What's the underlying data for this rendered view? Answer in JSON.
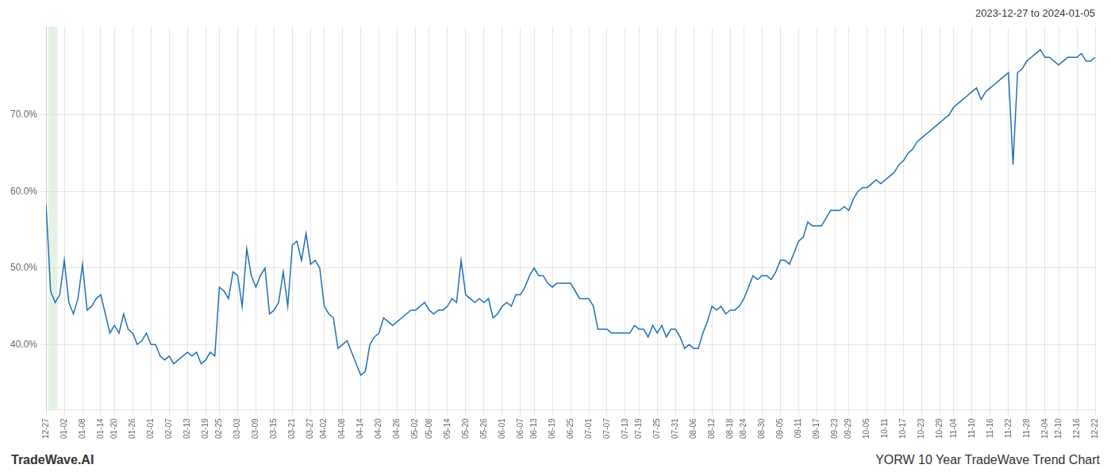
{
  "chart_data": {
    "type": "line",
    "subtitle": "2023-12-27 to 2024-01-05",
    "annotations": [
      "TradeWave.AI",
      "YORW 10 Year TradeWave Trend Chart"
    ],
    "color": "#1f6fb5",
    "grid": true,
    "highlight": {
      "x": [
        0.5,
        2.5
      ],
      "color": "#c8e6c9"
    },
    "ylim": [
      0.315,
      0.815
    ],
    "yticks": [
      {
        "value": 0.4,
        "label": "40.0%"
      },
      {
        "value": 0.5,
        "label": "50.0%"
      },
      {
        "value": 0.6,
        "label": "60.0%"
      },
      {
        "value": 0.7,
        "label": "70.0%"
      }
    ],
    "categories": [
      "12-27",
      null,
      null,
      null,
      "01-02",
      null,
      null,
      null,
      "01-08",
      null,
      null,
      null,
      "01-14",
      null,
      null,
      "01-20",
      null,
      null,
      null,
      "01-26",
      null,
      null,
      null,
      "02-01",
      null,
      null,
      null,
      "02-07",
      null,
      null,
      null,
      "02-13",
      null,
      null,
      null,
      "02-19",
      null,
      null,
      "02-25",
      null,
      null,
      null,
      "03-03",
      null,
      null,
      null,
      "03-09",
      null,
      null,
      null,
      "03-15",
      null,
      null,
      null,
      "03-21",
      null,
      null,
      null,
      "03-27",
      null,
      null,
      "04-02",
      null,
      null,
      null,
      "04-08",
      null,
      null,
      null,
      "04-14",
      null,
      null,
      null,
      "04-20",
      null,
      null,
      null,
      "04-26",
      null,
      null,
      null,
      "05-02",
      null,
      null,
      "05-08",
      null,
      null,
      null,
      "05-14",
      null,
      null,
      null,
      "05-20",
      null,
      null,
      null,
      "05-26",
      null,
      null,
      null,
      "06-01",
      null,
      null,
      null,
      "06-07",
      null,
      null,
      "06-13",
      null,
      null,
      null,
      "06-19",
      null,
      null,
      null,
      "06-25",
      null,
      null,
      null,
      "07-01",
      null,
      null,
      null,
      "07-07",
      null,
      null,
      null,
      "07-13",
      null,
      null,
      "07-19",
      null,
      null,
      null,
      "07-25",
      null,
      null,
      null,
      "07-31",
      null,
      null,
      null,
      "08-06",
      null,
      null,
      null,
      "08-12",
      null,
      null,
      null,
      "08-18",
      null,
      null,
      "08-24",
      null,
      null,
      null,
      "08-30",
      null,
      null,
      null,
      "09-05",
      null,
      null,
      null,
      "09-11",
      null,
      null,
      null,
      "09-17",
      null,
      null,
      null,
      "09-23",
      null,
      null,
      "09-29",
      null,
      null,
      null,
      "10-05",
      null,
      null,
      null,
      "10-11",
      null,
      null,
      null,
      "10-17",
      null,
      null,
      null,
      "10-23",
      null,
      null,
      null,
      "10-29",
      null,
      null,
      "11-04",
      null,
      null,
      null,
      "11-10",
      null,
      null,
      null,
      "11-16",
      null,
      null,
      null,
      "11-22",
      null,
      null,
      null,
      "11-28",
      null,
      null,
      null,
      "12-04",
      null,
      null,
      "12-10",
      null,
      null,
      null,
      "12-16",
      null,
      null,
      null,
      "12-22"
    ],
    "values": [
      0.583,
      0.47,
      0.455,
      0.465,
      0.51,
      0.455,
      0.44,
      0.46,
      0.505,
      0.445,
      0.45,
      0.46,
      0.465,
      0.44,
      0.415,
      0.425,
      0.415,
      0.44,
      0.42,
      0.415,
      0.4,
      0.405,
      0.415,
      0.4,
      0.4,
      0.385,
      0.38,
      0.385,
      0.375,
      0.38,
      0.385,
      0.39,
      0.385,
      0.39,
      0.375,
      0.38,
      0.39,
      0.385,
      0.475,
      0.47,
      0.46,
      0.495,
      0.49,
      0.45,
      0.525,
      0.49,
      0.475,
      0.49,
      0.5,
      0.44,
      0.445,
      0.455,
      0.495,
      0.45,
      0.53,
      0.535,
      0.51,
      0.545,
      0.505,
      0.51,
      0.5,
      0.45,
      0.44,
      0.435,
      0.395,
      0.4,
      0.405,
      0.39,
      0.375,
      0.36,
      0.365,
      0.4,
      0.41,
      0.415,
      0.435,
      0.43,
      0.425,
      0.43,
      0.435,
      0.44,
      0.445,
      0.445,
      0.45,
      0.455,
      0.445,
      0.44,
      0.445,
      0.445,
      0.45,
      0.46,
      0.455,
      0.51,
      0.465,
      0.46,
      0.455,
      0.46,
      0.455,
      0.46,
      0.435,
      0.44,
      0.45,
      0.455,
      0.45,
      0.465,
      0.465,
      0.475,
      0.49,
      0.5,
      0.49,
      0.49,
      0.48,
      0.475,
      0.48,
      0.48,
      0.48,
      0.48,
      0.47,
      0.46,
      0.46,
      0.46,
      0.45,
      0.42,
      0.42,
      0.42,
      0.415,
      0.415,
      0.415,
      0.415,
      0.415,
      0.425,
      0.42,
      0.42,
      0.41,
      0.425,
      0.415,
      0.425,
      0.41,
      0.42,
      0.42,
      0.41,
      0.395,
      0.4,
      0.395,
      0.395,
      0.415,
      0.43,
      0.45,
      0.445,
      0.45,
      0.44,
      0.445,
      0.445,
      0.45,
      0.46,
      0.475,
      0.49,
      0.485,
      0.49,
      0.49,
      0.485,
      0.495,
      0.51,
      0.51,
      0.505,
      0.52,
      0.535,
      0.54,
      0.56,
      0.555,
      0.555,
      0.555,
      0.565,
      0.575,
      0.575,
      0.575,
      0.58,
      0.575,
      0.59,
      0.6,
      0.605,
      0.605,
      0.61,
      0.615,
      0.61,
      0.615,
      0.62,
      0.625,
      0.635,
      0.64,
      0.65,
      0.655,
      0.665,
      0.67,
      0.675,
      0.68,
      0.685,
      0.69,
      0.695,
      0.7,
      0.71,
      0.715,
      0.72,
      0.725,
      0.73,
      0.735,
      0.72,
      0.73,
      0.735,
      0.74,
      0.745,
      0.75,
      0.755,
      0.635,
      0.755,
      0.76,
      0.77,
      0.775,
      0.78,
      0.785,
      0.775,
      0.775,
      0.77,
      0.765,
      0.77,
      0.775,
      0.775,
      0.775,
      0.78,
      0.77,
      0.77,
      0.775
    ]
  }
}
